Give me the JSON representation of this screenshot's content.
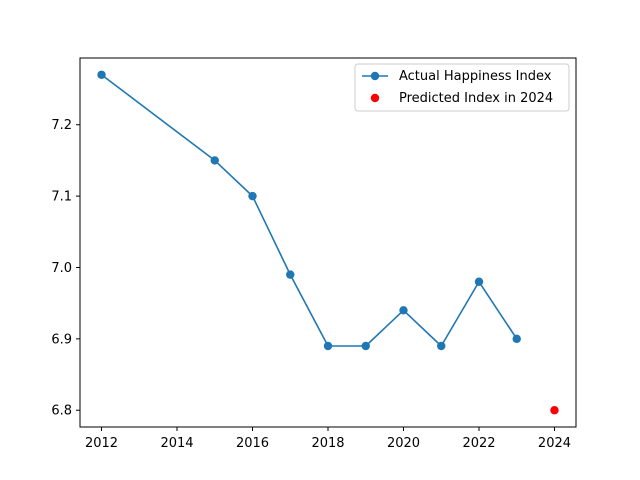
{
  "chart_data": {
    "type": "line",
    "title": "",
    "xlabel": "",
    "ylabel": "",
    "xlim": [
      2011.43,
      2024.57
    ],
    "ylim": [
      6.7765,
      7.2935
    ],
    "x_ticks": [
      2012,
      2014,
      2016,
      2018,
      2020,
      2022,
      2024
    ],
    "y_ticks": [
      6.8,
      6.9,
      7.0,
      7.1,
      7.2
    ],
    "x_tick_labels": [
      "2012",
      "2014",
      "2016",
      "2018",
      "2020",
      "2022",
      "2024"
    ],
    "y_tick_labels": [
      "6.8",
      "6.9",
      "7.0",
      "7.1",
      "7.2"
    ],
    "grid": false,
    "legend_position": "top-right",
    "series": [
      {
        "name": "Actual Happiness Index",
        "style": "line-with-markers",
        "color": "#1f77b4",
        "x": [
          2012,
          2015,
          2016,
          2017,
          2018,
          2019,
          2020,
          2021,
          2022,
          2023
        ],
        "y": [
          7.27,
          7.15,
          7.1,
          6.99,
          6.89,
          6.89,
          6.94,
          6.89,
          6.98,
          6.9
        ]
      },
      {
        "name": "Predicted Index in 2024",
        "style": "markers",
        "color": "#ff0000",
        "x": [
          2024
        ],
        "y": [
          6.8
        ]
      }
    ]
  }
}
